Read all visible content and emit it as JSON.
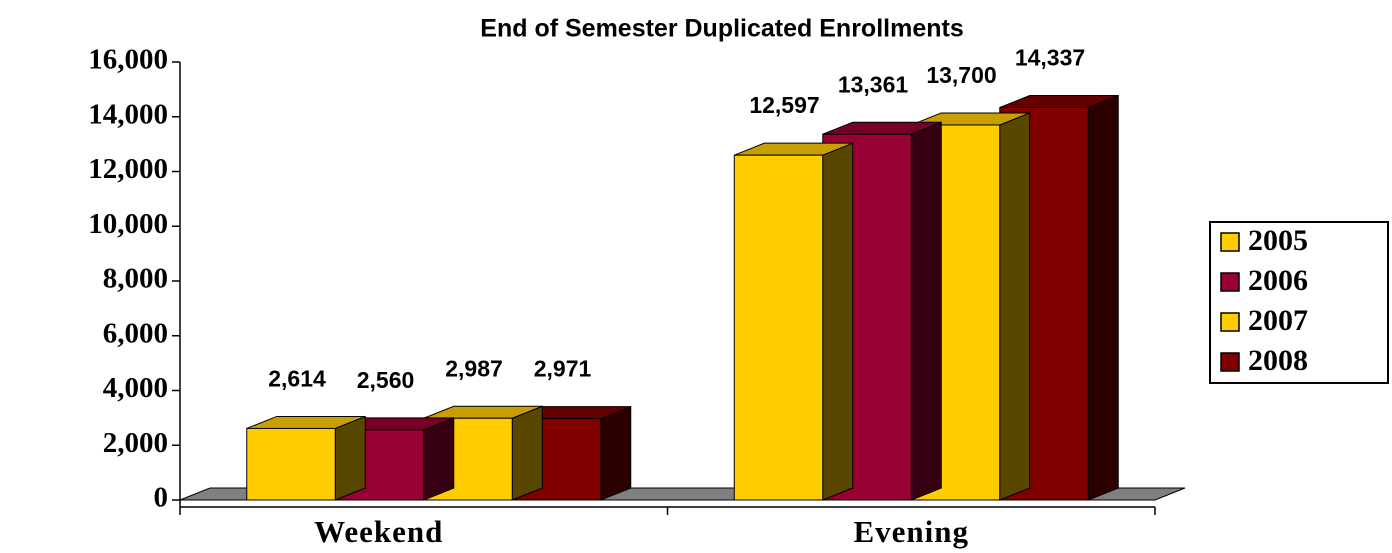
{
  "chart_data": {
    "type": "bar3d",
    "title": "End of Semester Duplicated Enrollments",
    "categories": [
      "Weekend",
      "Evening"
    ],
    "series": [
      {
        "name": "2005",
        "color": "#FFCC00",
        "values": [
          2614,
          12597
        ],
        "value_labels": [
          "2,614",
          "12,597"
        ]
      },
      {
        "name": "2006",
        "color": "#990033",
        "values": [
          2560,
          13361
        ],
        "value_labels": [
          "2,560",
          "13,361"
        ]
      },
      {
        "name": "2007",
        "color": "#FFCC00",
        "values": [
          2987,
          13700
        ],
        "value_labels": [
          "2,987",
          "13,700"
        ]
      },
      {
        "name": "2008",
        "color": "#800000",
        "values": [
          2971,
          14337
        ],
        "value_labels": [
          "2,971",
          "14,337"
        ]
      }
    ],
    "ylim": [
      0,
      16000
    ],
    "yticks": [
      0,
      {
        "value": 2000,
        "label": "2,000"
      },
      {
        "value": 4000,
        "label": "4,000"
      },
      {
        "value": 6000,
        "label": "6,000"
      },
      {
        "value": 8000,
        "label": "8,000"
      },
      {
        "value": 10000,
        "label": "10,000"
      },
      {
        "value": 12000,
        "label": "12,000"
      },
      {
        "value": 14000,
        "label": "14,000"
      },
      {
        "value": 16000,
        "label": "16,000"
      }
    ],
    "legend": "right"
  }
}
